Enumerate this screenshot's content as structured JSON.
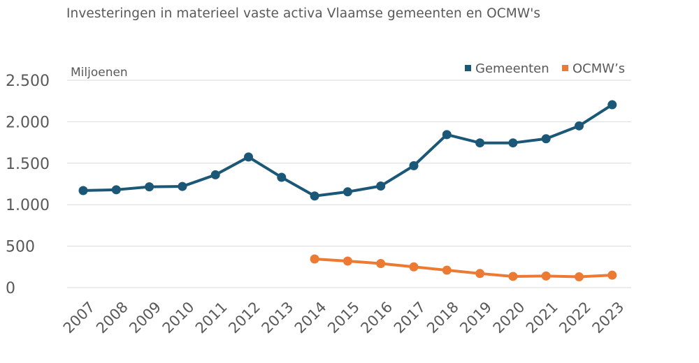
{
  "chart_data": {
    "type": "line",
    "title": "Investeringen in materieel vaste activa Vlaamse gemeenten en OCMW's",
    "ylabel": "Miljoenen",
    "xlabel": "",
    "ylim": [
      0,
      2500
    ],
    "yticks": [
      0,
      500,
      1000,
      1500,
      2000,
      2500
    ],
    "ytick_labels": [
      "0",
      "500",
      "1.000",
      "1.500",
      "2.000",
      "2.500"
    ],
    "grid": true,
    "legend_position": "top-right",
    "categories": [
      "2007",
      "2008",
      "2009",
      "2010",
      "2011",
      "2012",
      "2013",
      "2014",
      "2015",
      "2016",
      "2017",
      "2018",
      "2019",
      "2020",
      "2021",
      "2022",
      "2023"
    ],
    "series": [
      {
        "name": "Gemeenten",
        "color": "#1b5878",
        "values": [
          1170,
          1180,
          1215,
          1220,
          1360,
          1575,
          1330,
          1105,
          1155,
          1225,
          1470,
          1845,
          1745,
          1745,
          1795,
          1950,
          2205
        ]
      },
      {
        "name": "OCMW’s",
        "color": "#ec7a33",
        "values": [
          null,
          null,
          null,
          null,
          null,
          null,
          null,
          345,
          320,
          290,
          250,
          210,
          170,
          135,
          140,
          130,
          150
        ]
      }
    ]
  }
}
